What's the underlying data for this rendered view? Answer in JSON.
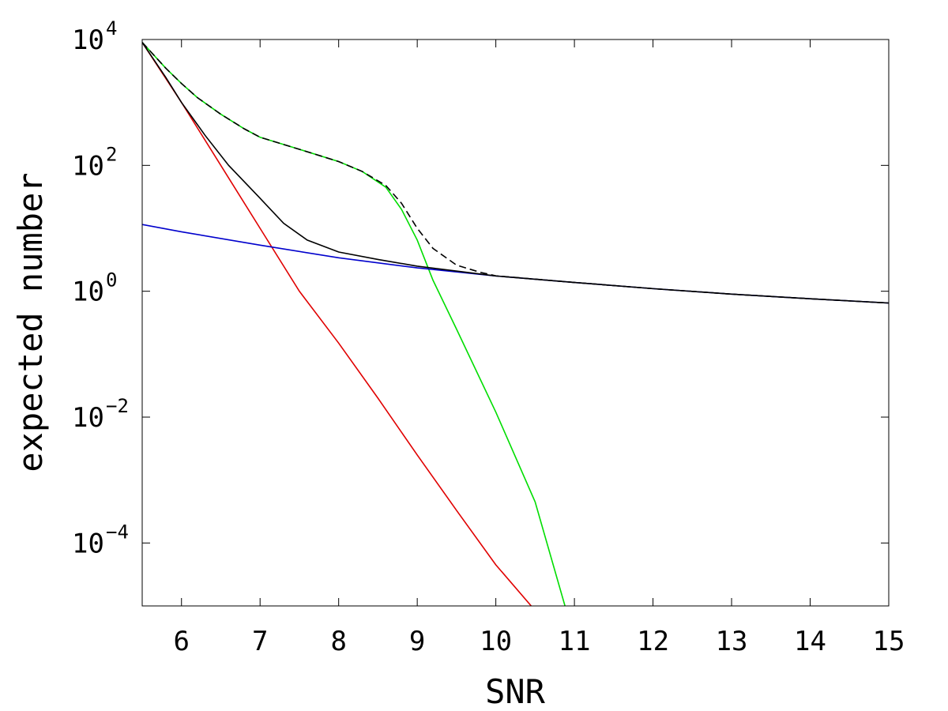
{
  "chart_data": {
    "type": "line",
    "title": "",
    "xlabel": "SNR",
    "ylabel": "expected number",
    "xlim": [
      5.5,
      15
    ],
    "ylim_log10": [
      -5,
      4
    ],
    "y_scale": "log",
    "grid": false,
    "x_ticks": [
      {
        "value": 6,
        "label": "6"
      },
      {
        "value": 7,
        "label": "7"
      },
      {
        "value": 8,
        "label": "8"
      },
      {
        "value": 9,
        "label": "9"
      },
      {
        "value": 10,
        "label": "10"
      },
      {
        "value": 11,
        "label": "11"
      },
      {
        "value": 12,
        "label": "12"
      },
      {
        "value": 13,
        "label": "13"
      },
      {
        "value": 14,
        "label": "14"
      },
      {
        "value": 15,
        "label": "15"
      }
    ],
    "y_ticks": [
      {
        "value": 10000,
        "base": "10",
        "exp": "4"
      },
      {
        "value": 100,
        "base": "10",
        "exp": "2"
      },
      {
        "value": 1,
        "base": "10",
        "exp": "0"
      },
      {
        "value": 0.01,
        "base": "10",
        "exp": "−2"
      },
      {
        "value": 0.0001,
        "base": "10",
        "exp": "−4"
      }
    ],
    "series": [
      {
        "color": "#e00000",
        "dash": false,
        "x": [
          5.5,
          6.0,
          6.5,
          7.0,
          7.5,
          8.0,
          8.5,
          9.0,
          9.5,
          10.0,
          10.45
        ],
        "y": [
          9000,
          1000,
          100,
          10,
          1,
          0.15,
          0.02,
          0.0025,
          0.00033,
          4.5e-05,
          1e-05
        ]
      },
      {
        "color": "#00dd00",
        "dash": false,
        "x": [
          5.5,
          5.8,
          6.0,
          6.2,
          6.5,
          6.8,
          7.0,
          7.5,
          8.0,
          8.3,
          8.6,
          8.8,
          9.0,
          9.2,
          9.5,
          10.0,
          10.5,
          10.88
        ],
        "y": [
          9000,
          3500,
          2000,
          1200,
          650,
          380,
          280,
          180,
          115,
          80,
          45,
          20,
          6.5,
          1.5,
          0.25,
          0.012,
          0.00045,
          1e-05
        ]
      },
      {
        "color": "#0000cc",
        "dash": false,
        "x": [
          5.5,
          6,
          7,
          8,
          9,
          10,
          11,
          12,
          13,
          14,
          15
        ],
        "y": [
          11.5,
          8.8,
          5.4,
          3.4,
          2.35,
          1.75,
          1.38,
          1.1,
          0.9,
          0.76,
          0.65
        ]
      },
      {
        "color": "#000000",
        "dash": false,
        "x": [
          5.5,
          5.8,
          6.0,
          6.3,
          6.6,
          7.0,
          7.3,
          7.6,
          8.0,
          8.5,
          9.0,
          10,
          11,
          12,
          13,
          14,
          15
        ],
        "y": [
          9000,
          2500,
          1000,
          300,
          100,
          30,
          12,
          6.5,
          4.2,
          3.2,
          2.5,
          1.75,
          1.38,
          1.1,
          0.9,
          0.76,
          0.65
        ]
      },
      {
        "color": "#000000",
        "dash": true,
        "x": [
          5.5,
          5.8,
          6.0,
          6.2,
          6.5,
          6.8,
          7.0,
          7.5,
          8.0,
          8.3,
          8.6,
          8.8,
          9.0,
          9.2,
          9.5,
          9.8,
          10,
          11,
          12,
          13,
          14,
          15
        ],
        "y": [
          9000,
          3500,
          2000,
          1200,
          650,
          380,
          280,
          180,
          115,
          80,
          48,
          25,
          10,
          4.8,
          2.6,
          2.0,
          1.76,
          1.38,
          1.1,
          0.9,
          0.76,
          0.65
        ]
      }
    ]
  }
}
